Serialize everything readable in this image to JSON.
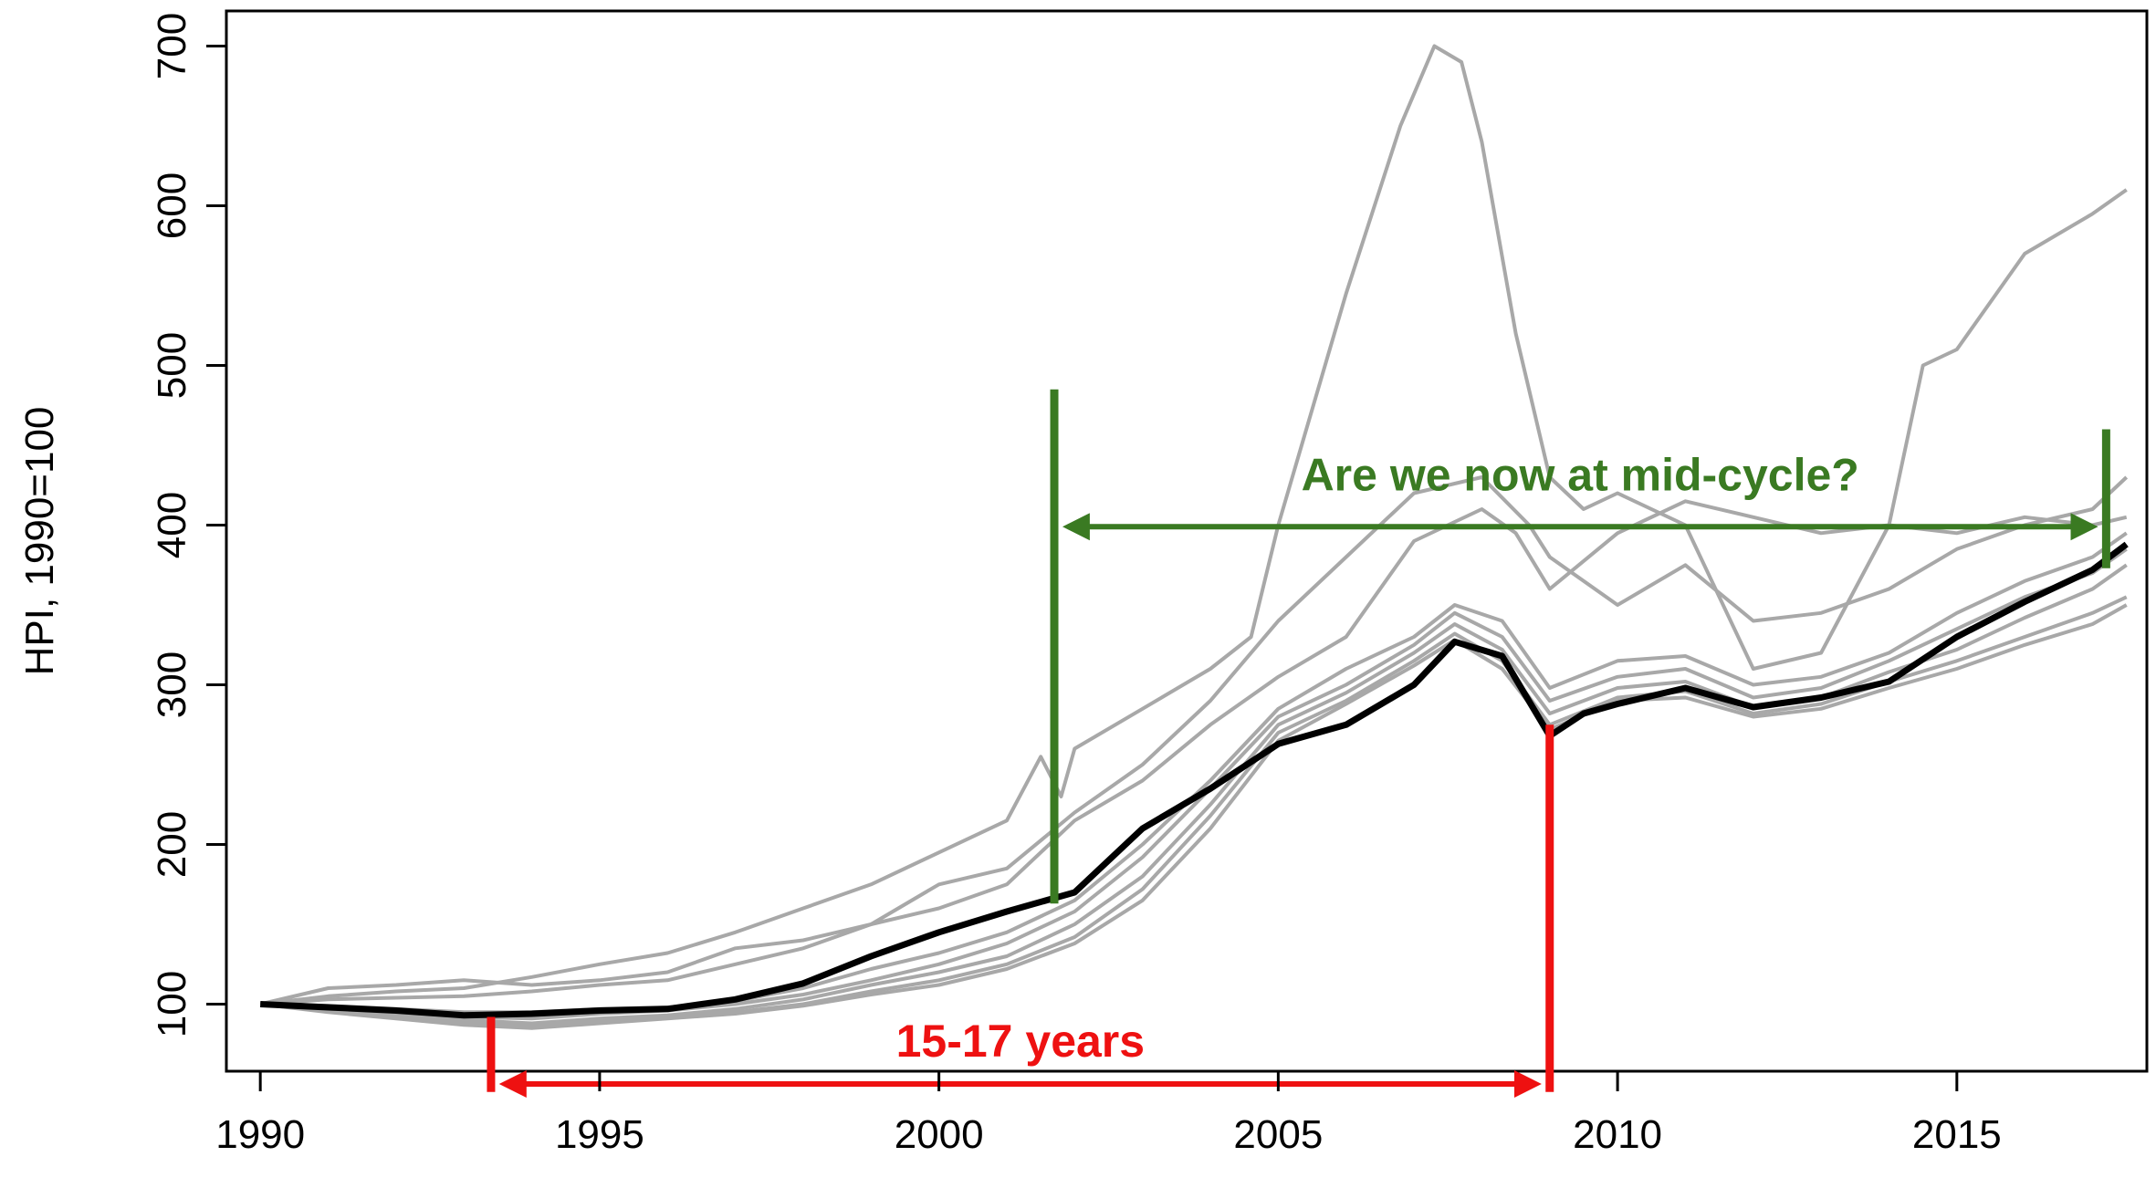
{
  "chart_data": {
    "type": "line",
    "title": "",
    "xlabel": "",
    "ylabel": "HPI, 1990=100",
    "xlim": [
      1989.5,
      2017.8
    ],
    "ylim": [
      58,
      722
    ],
    "x_ticks": [
      1990,
      1995,
      2000,
      2005,
      2010,
      2015
    ],
    "x_tick_labels": [
      "1990",
      "1995",
      "2000",
      "2005",
      "2010",
      "2015"
    ],
    "y_ticks": [
      100,
      200,
      300,
      400,
      500,
      600,
      700
    ],
    "y_tick_labels": [
      "100",
      "200",
      "300",
      "400",
      "500",
      "600",
      "700"
    ],
    "grid": false,
    "legend": "none",
    "highlight_color": "#000000",
    "series_color": "#a8a8a8",
    "series": [
      {
        "highlight": true,
        "points": [
          [
            1990,
            100
          ],
          [
            1991,
            98
          ],
          [
            1992,
            96
          ],
          [
            1993,
            93
          ],
          [
            1994,
            94
          ],
          [
            1995,
            96
          ],
          [
            1996,
            97
          ],
          [
            1997,
            103
          ],
          [
            1998,
            113
          ],
          [
            1999,
            130
          ],
          [
            2000,
            145
          ],
          [
            2001,
            158
          ],
          [
            2002,
            170
          ],
          [
            2003,
            210
          ],
          [
            2004,
            235
          ],
          [
            2005,
            263
          ],
          [
            2006,
            275
          ],
          [
            2007,
            300
          ],
          [
            2007.6,
            327
          ],
          [
            2008.3,
            318
          ],
          [
            2009.0,
            268
          ],
          [
            2009.5,
            282
          ],
          [
            2010,
            288
          ],
          [
            2011,
            298
          ],
          [
            2012,
            286
          ],
          [
            2013,
            292
          ],
          [
            2014,
            302
          ],
          [
            2015,
            330
          ],
          [
            2016,
            352
          ],
          [
            2017,
            372
          ],
          [
            2017.5,
            388
          ]
        ]
      },
      {
        "points": [
          [
            1990,
            100
          ],
          [
            1991,
            105
          ],
          [
            1992,
            108
          ],
          [
            1993,
            110
          ],
          [
            1994,
            117
          ],
          [
            1995,
            125
          ],
          [
            1996,
            132
          ],
          [
            1997,
            145
          ],
          [
            1998,
            160
          ],
          [
            1999,
            175
          ],
          [
            2000,
            195
          ],
          [
            2001,
            215
          ],
          [
            2001.5,
            255
          ],
          [
            2001.8,
            230
          ],
          [
            2002,
            260
          ],
          [
            2003,
            285
          ],
          [
            2004,
            310
          ],
          [
            2004.6,
            330
          ],
          [
            2005,
            400
          ],
          [
            2006,
            545
          ],
          [
            2006.8,
            650
          ],
          [
            2007.3,
            700
          ],
          [
            2007.7,
            690
          ],
          [
            2008,
            640
          ],
          [
            2008.5,
            520
          ],
          [
            2009,
            430
          ],
          [
            2009.5,
            410
          ],
          [
            2010,
            420
          ],
          [
            2011,
            400
          ],
          [
            2012,
            310
          ],
          [
            2013,
            320
          ],
          [
            2014,
            400
          ],
          [
            2014.5,
            500
          ],
          [
            2015,
            510
          ],
          [
            2016,
            570
          ],
          [
            2017,
            595
          ],
          [
            2017.5,
            610
          ]
        ]
      },
      {
        "points": [
          [
            1990,
            100
          ],
          [
            1991,
            110
          ],
          [
            1992,
            112
          ],
          [
            1993,
            115
          ],
          [
            1994,
            112
          ],
          [
            1995,
            115
          ],
          [
            1996,
            120
          ],
          [
            1997,
            135
          ],
          [
            1998,
            140
          ],
          [
            1999,
            150
          ],
          [
            2000,
            175
          ],
          [
            2001,
            185
          ],
          [
            2002,
            220
          ],
          [
            2003,
            250
          ],
          [
            2004,
            290
          ],
          [
            2005,
            340
          ],
          [
            2006,
            380
          ],
          [
            2007,
            420
          ],
          [
            2008,
            430
          ],
          [
            2008.7,
            400
          ],
          [
            2009,
            380
          ],
          [
            2010,
            350
          ],
          [
            2011,
            375
          ],
          [
            2012,
            340
          ],
          [
            2013,
            345
          ],
          [
            2014,
            360
          ],
          [
            2015,
            385
          ],
          [
            2016,
            400
          ],
          [
            2017,
            410
          ],
          [
            2017.5,
            430
          ]
        ]
      },
      {
        "points": [
          [
            1990,
            100
          ],
          [
            1991,
            103
          ],
          [
            1992,
            104
          ],
          [
            1993,
            105
          ],
          [
            1994,
            108
          ],
          [
            1995,
            112
          ],
          [
            1996,
            115
          ],
          [
            1997,
            125
          ],
          [
            1998,
            135
          ],
          [
            1999,
            150
          ],
          [
            2000,
            160
          ],
          [
            2001,
            175
          ],
          [
            2002,
            215
          ],
          [
            2003,
            240
          ],
          [
            2004,
            275
          ],
          [
            2005,
            305
          ],
          [
            2006,
            330
          ],
          [
            2007,
            390
          ],
          [
            2008,
            410
          ],
          [
            2008.5,
            395
          ],
          [
            2009,
            360
          ],
          [
            2010,
            395
          ],
          [
            2011,
            415
          ],
          [
            2012,
            405
          ],
          [
            2013,
            395
          ],
          [
            2014,
            400
          ],
          [
            2015,
            395
          ],
          [
            2016,
            405
          ],
          [
            2017,
            400
          ],
          [
            2017.5,
            405
          ]
        ]
      },
      {
        "points": [
          [
            1990,
            100
          ],
          [
            1991,
            99
          ],
          [
            1992,
            97
          ],
          [
            1993,
            95
          ],
          [
            1994,
            95
          ],
          [
            1995,
            97
          ],
          [
            1996,
            98
          ],
          [
            1997,
            102
          ],
          [
            1998,
            110
          ],
          [
            1999,
            122
          ],
          [
            2000,
            132
          ],
          [
            2001,
            145
          ],
          [
            2002,
            165
          ],
          [
            2003,
            200
          ],
          [
            2004,
            240
          ],
          [
            2005,
            285
          ],
          [
            2006,
            310
          ],
          [
            2007,
            330
          ],
          [
            2007.6,
            350
          ],
          [
            2008.3,
            340
          ],
          [
            2009,
            298
          ],
          [
            2010,
            315
          ],
          [
            2011,
            318
          ],
          [
            2012,
            300
          ],
          [
            2013,
            305
          ],
          [
            2014,
            320
          ],
          [
            2015,
            345
          ],
          [
            2016,
            365
          ],
          [
            2017,
            380
          ],
          [
            2017.5,
            395
          ]
        ]
      },
      {
        "points": [
          [
            1990,
            100
          ],
          [
            1991,
            98
          ],
          [
            1992,
            96
          ],
          [
            1993,
            92
          ],
          [
            1994,
            91
          ],
          [
            1995,
            94
          ],
          [
            1996,
            96
          ],
          [
            1997,
            100
          ],
          [
            1998,
            106
          ],
          [
            1999,
            115
          ],
          [
            2000,
            125
          ],
          [
            2001,
            138
          ],
          [
            2002,
            158
          ],
          [
            2003,
            192
          ],
          [
            2004,
            235
          ],
          [
            2005,
            280
          ],
          [
            2006,
            300
          ],
          [
            2007,
            325
          ],
          [
            2007.6,
            345
          ],
          [
            2008.3,
            330
          ],
          [
            2009,
            290
          ],
          [
            2010,
            305
          ],
          [
            2011,
            310
          ],
          [
            2012,
            292
          ],
          [
            2013,
            298
          ],
          [
            2014,
            315
          ],
          [
            2015,
            335
          ],
          [
            2016,
            355
          ],
          [
            2017,
            370
          ],
          [
            2017.5,
            385
          ]
        ]
      },
      {
        "points": [
          [
            1990,
            100
          ],
          [
            1991,
            97
          ],
          [
            1992,
            94
          ],
          [
            1993,
            90
          ],
          [
            1994,
            88
          ],
          [
            1995,
            91
          ],
          [
            1996,
            93
          ],
          [
            1997,
            97
          ],
          [
            1998,
            103
          ],
          [
            1999,
            112
          ],
          [
            2000,
            120
          ],
          [
            2001,
            130
          ],
          [
            2002,
            150
          ],
          [
            2003,
            180
          ],
          [
            2004,
            225
          ],
          [
            2005,
            275
          ],
          [
            2006,
            295
          ],
          [
            2007,
            320
          ],
          [
            2007.6,
            338
          ],
          [
            2008.3,
            322
          ],
          [
            2009,
            282
          ],
          [
            2010,
            298
          ],
          [
            2011,
            302
          ],
          [
            2012,
            286
          ],
          [
            2013,
            292
          ],
          [
            2014,
            308
          ],
          [
            2015,
            322
          ],
          [
            2016,
            342
          ],
          [
            2017,
            360
          ],
          [
            2017.5,
            375
          ]
        ]
      },
      {
        "points": [
          [
            1990,
            100
          ],
          [
            1991,
            96
          ],
          [
            1992,
            92
          ],
          [
            1993,
            88
          ],
          [
            1994,
            86
          ],
          [
            1995,
            89
          ],
          [
            1996,
            92
          ],
          [
            1997,
            95
          ],
          [
            1998,
            100
          ],
          [
            1999,
            108
          ],
          [
            2000,
            115
          ],
          [
            2001,
            125
          ],
          [
            2002,
            142
          ],
          [
            2003,
            172
          ],
          [
            2004,
            218
          ],
          [
            2005,
            270
          ],
          [
            2006,
            290
          ],
          [
            2007,
            315
          ],
          [
            2007.6,
            332
          ],
          [
            2008.3,
            315
          ],
          [
            2009,
            275
          ],
          [
            2010,
            292
          ],
          [
            2011,
            296
          ],
          [
            2012,
            282
          ],
          [
            2013,
            288
          ],
          [
            2014,
            302
          ],
          [
            2015,
            315
          ],
          [
            2016,
            330
          ],
          [
            2017,
            345
          ],
          [
            2017.5,
            355
          ]
        ]
      },
      {
        "points": [
          [
            1990,
            100
          ],
          [
            1991,
            95
          ],
          [
            1992,
            91
          ],
          [
            1993,
            87
          ],
          [
            1994,
            85
          ],
          [
            1995,
            88
          ],
          [
            1996,
            91
          ],
          [
            1997,
            94
          ],
          [
            1998,
            99
          ],
          [
            1999,
            106
          ],
          [
            2000,
            112
          ],
          [
            2001,
            122
          ],
          [
            2002,
            138
          ],
          [
            2003,
            165
          ],
          [
            2004,
            210
          ],
          [
            2005,
            265
          ],
          [
            2006,
            288
          ],
          [
            2007,
            312
          ],
          [
            2007.6,
            328
          ],
          [
            2008.3,
            310
          ],
          [
            2009,
            272
          ],
          [
            2010,
            290
          ],
          [
            2011,
            292
          ],
          [
            2012,
            280
          ],
          [
            2013,
            285
          ],
          [
            2014,
            298
          ],
          [
            2015,
            310
          ],
          [
            2016,
            325
          ],
          [
            2017,
            338
          ],
          [
            2017.5,
            350
          ]
        ]
      }
    ],
    "annotations": [
      {
        "label": "Are we now at mid-cycle?",
        "color": "#3a7a22",
        "marker_x": [
          2001.7,
          2017.2
        ],
        "marker_y": [
          [
            163,
            485
          ],
          [
            373,
            460
          ]
        ],
        "arrow_y": 399,
        "arrow_x": [
          2001.9,
          2017.0
        ]
      },
      {
        "label": "15-17 years",
        "color": "#ee1111",
        "marker_x": [
          1993.4,
          2009.0
        ],
        "marker_y": [
          [
            45,
            92
          ],
          [
            45,
            275
          ]
        ],
        "arrow_y": 50,
        "arrow_x": [
          1993.6,
          2008.8
        ]
      }
    ]
  }
}
